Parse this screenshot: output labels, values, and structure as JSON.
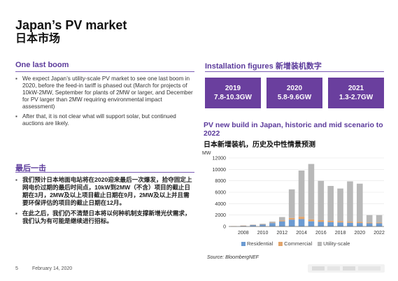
{
  "header": {
    "title": "Japan’s PV market",
    "subtitle": "日本市场"
  },
  "left": {
    "heading_en": "One last boom",
    "bullets_en": [
      "We expect Japan’s utility-scale PV market to see one last boom in 2020, before the feed-in tariff is phased out (March for projects of 10kW-2MW, September for plants of 2MW or larger, and December for PV larger than 2MW requiring environmental impact assessment)",
      "After that, it is not clear what will support solar, but continued auctions are likely."
    ],
    "heading_cn": "最后一击",
    "bullets_cn": [
      "我们预计日本地面电站将在2020迎来最后一次爆发，拾夺固定上网电价过期的最后时间点，10kW到2MW（不含）项目的截止日期在3月，2MW及以上项目截止日期在9月，2MW及以上并且需要环保评估的项目的截止日期在12月。",
      "在此之后，我们仍不清楚日本将以何种机制支撑新增光伏需求，我们认为有可能是继续进行招标。"
    ]
  },
  "right": {
    "heading": "Installation figures 新增装机数字",
    "boxes": [
      {
        "year": "2019",
        "range": "7.8-10.3GW"
      },
      {
        "year": "2020",
        "range": "5.8-9.6GW"
      },
      {
        "year": "2021",
        "range": "1.3-2.7GW"
      }
    ],
    "chart_title": "PV new build in Japan, historic and mid scenario to 2022",
    "chart_title_cn": "日本新增装机，历史及中性情景预测",
    "source": "Source: BloombergNEF"
  },
  "footer": {
    "page": "5",
    "date": "February 14, 2020"
  },
  "colors": {
    "accent": "#6a3f9e",
    "residential": "#6c9bd2",
    "commercial": "#e2a46b",
    "utility": "#b8b8b8"
  },
  "chart_data": {
    "type": "bar",
    "stacked": true,
    "ylabel": "MW",
    "ylim": [
      0,
      12000
    ],
    "yticks": [
      0,
      2000,
      4000,
      6000,
      8000,
      10000,
      12000
    ],
    "categories": [
      "2007",
      "2008",
      "2009",
      "2010",
      "2011",
      "2012",
      "2013",
      "2014",
      "2015",
      "2016",
      "2017",
      "2018",
      "2019",
      "2020",
      "2021",
      "2022"
    ],
    "xtick_labels": [
      "2008",
      "2010",
      "2012",
      "2014",
      "2016",
      "2018",
      "2020",
      "2022"
    ],
    "series": [
      {
        "name": "Residential",
        "color": "#6c9bd2",
        "values": [
          50,
          130,
          250,
          350,
          600,
          900,
          1200,
          1300,
          900,
          800,
          750,
          700,
          650,
          600,
          550,
          550
        ]
      },
      {
        "name": "Commercial",
        "color": "#e2a46b",
        "values": [
          10,
          20,
          30,
          40,
          60,
          150,
          300,
          400,
          350,
          300,
          250,
          250,
          200,
          200,
          150,
          150
        ]
      },
      {
        "name": "Utility-scale",
        "color": "#b8b8b8",
        "values": [
          0,
          0,
          50,
          100,
          200,
          600,
          5000,
          8100,
          9700,
          6900,
          6100,
          5700,
          7050,
          6700,
          1300,
          1300
        ]
      }
    ],
    "legend_position": "bottom"
  }
}
